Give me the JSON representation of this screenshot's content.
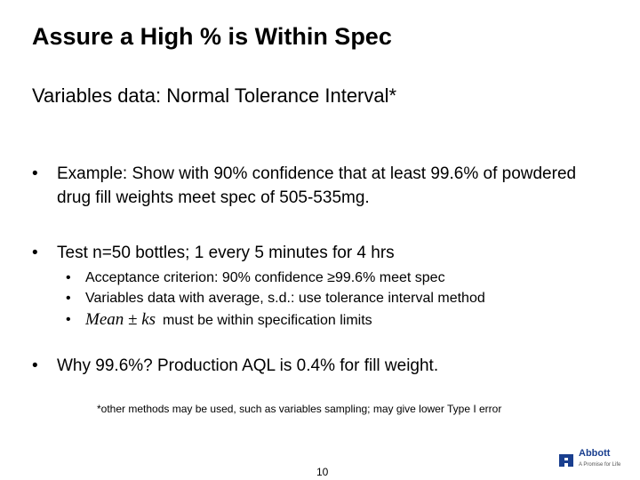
{
  "slide": {
    "title": "Assure a High % is Within Spec",
    "subtitle": "Variables data: Normal Tolerance Interval*",
    "bullet_char": "•",
    "bullets": [
      {
        "text": "Example: Show with 90% confidence that at least 99.6% of powdered drug fill weights meet spec of 505-535mg."
      },
      {
        "text": "Test n=50 bottles; 1 every 5 minutes for 4 hrs",
        "sub_bullets": [
          {
            "text": "Acceptance criterion: 90% confidence ≥99.6% meet spec"
          },
          {
            "text": "Variables data with average, s.d.: use tolerance interval method"
          },
          {
            "formula": "Mean ± ks",
            "text": "must be within specification limits"
          }
        ]
      },
      {
        "text": "Why 99.6%?  Production AQL is 0.4% for fill weight."
      }
    ],
    "footnote": "*other methods may be used, such as variables sampling; may give lower Type I error",
    "page_number": "10"
  },
  "logo": {
    "name": "Abbott",
    "tagline": "A Promise for Life",
    "color": "#1a3f8f"
  }
}
